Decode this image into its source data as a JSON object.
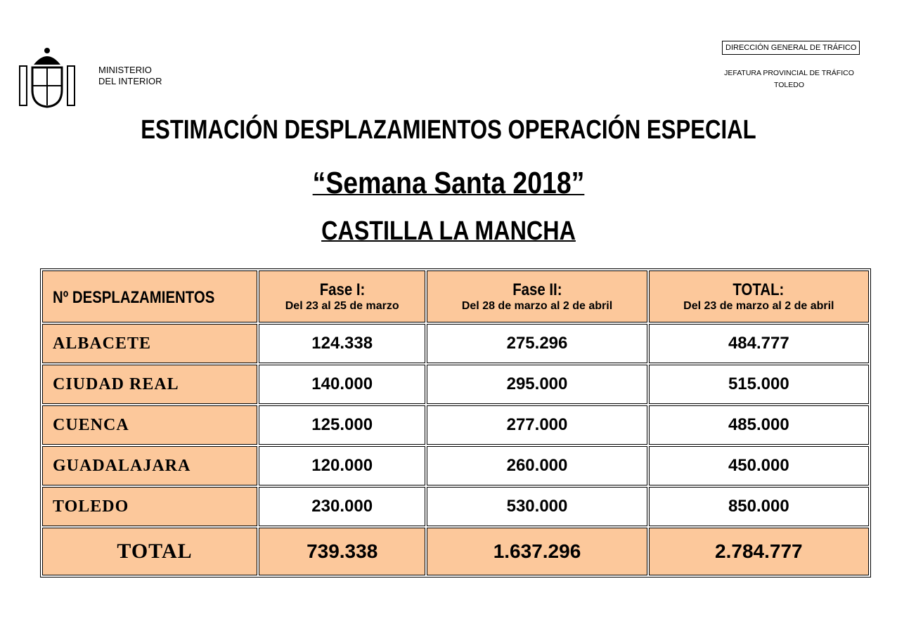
{
  "header": {
    "left_org": [
      "MINISTERIO",
      "DEL INTERIOR"
    ],
    "right_box": "DIRECCIÓN GENERAL DE TRÁFICO",
    "right_lines": [
      "JEFATURA PROVINCIAL DE TRÁFICO",
      "TOLEDO"
    ]
  },
  "title": "ESTIMACIÓN DESPLAZAMIENTOS OPERACIÓN ESPECIAL",
  "subtitle": "“Semana Santa 2018”",
  "region": "CASTILLA LA MANCHA",
  "table": {
    "corner": "Nº DESPLAZAMIENTOS",
    "columns": [
      {
        "name": "Fase I:",
        "range": "Del 23 al 25 de marzo"
      },
      {
        "name": "Fase II:",
        "range": "Del 28 de marzo al 2 de abril"
      },
      {
        "name": "TOTAL:",
        "range": "Del 23 de marzo al 2 de abril"
      }
    ],
    "rows": [
      [
        "ALBACETE",
        "124.338",
        "275.296",
        "484.777"
      ],
      [
        "CIUDAD REAL",
        "140.000",
        "295.000",
        "515.000"
      ],
      [
        "CUENCA",
        "125.000",
        "277.000",
        "485.000"
      ],
      [
        "GUADALAJARA",
        "120.000",
        "260.000",
        "450.000"
      ],
      [
        "TOLEDO",
        "230.000",
        "530.000",
        "850.000"
      ]
    ],
    "total": [
      "TOTAL",
      "739.338",
      "1.637.296",
      "2.784.777"
    ]
  }
}
